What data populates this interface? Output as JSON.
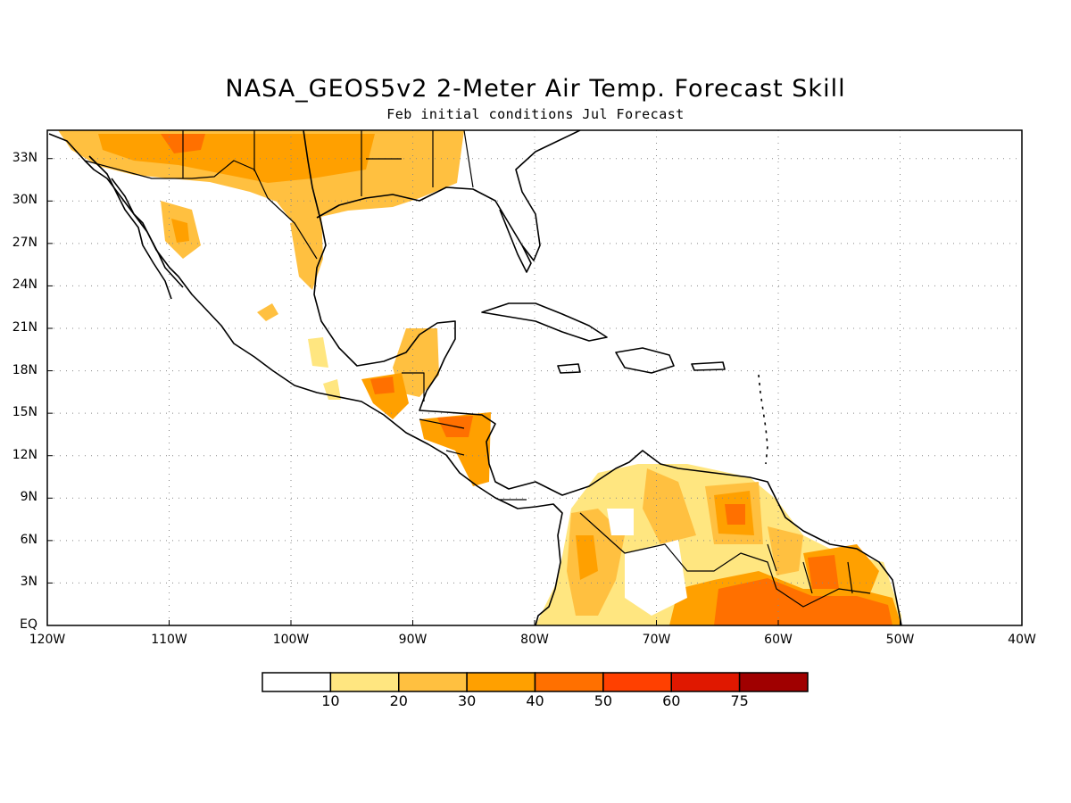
{
  "title": "NASA_GEOS5v2 2-Meter Air Temp. Forecast Skill",
  "subtitle": "Feb initial conditions  Jul Forecast",
  "map": {
    "lon_range": [
      -120,
      -40
    ],
    "lat_range": [
      0,
      35
    ],
    "lat_ticks": [
      {
        "value": 33,
        "label": "33N"
      },
      {
        "value": 30,
        "label": "30N"
      },
      {
        "value": 27,
        "label": "27N"
      },
      {
        "value": 24,
        "label": "24N"
      },
      {
        "value": 21,
        "label": "21N"
      },
      {
        "value": 18,
        "label": "18N"
      },
      {
        "value": 15,
        "label": "15N"
      },
      {
        "value": 12,
        "label": "12N"
      },
      {
        "value": 9,
        "label": "9N"
      },
      {
        "value": 6,
        "label": "6N"
      },
      {
        "value": 3,
        "label": "3N"
      },
      {
        "value": 0,
        "label": "EQ"
      }
    ],
    "lon_ticks": [
      {
        "value": -120,
        "label": "120W"
      },
      {
        "value": -110,
        "label": "110W"
      },
      {
        "value": -100,
        "label": "100W"
      },
      {
        "value": -90,
        "label": "90W"
      },
      {
        "value": -80,
        "label": "80W"
      },
      {
        "value": -70,
        "label": "70W"
      },
      {
        "value": -60,
        "label": "60W"
      },
      {
        "value": -50,
        "label": "50W"
      },
      {
        "value": -40,
        "label": "40W"
      }
    ],
    "grid": "dotted"
  },
  "colorbar": {
    "colors": [
      "#ffffff",
      "#ffe680",
      "#ffc040",
      "#ffa000",
      "#ff7000",
      "#ff4000",
      "#e01800",
      "#a00000"
    ],
    "labels": [
      "10",
      "20",
      "30",
      "40",
      "50",
      "60",
      "75"
    ]
  }
}
